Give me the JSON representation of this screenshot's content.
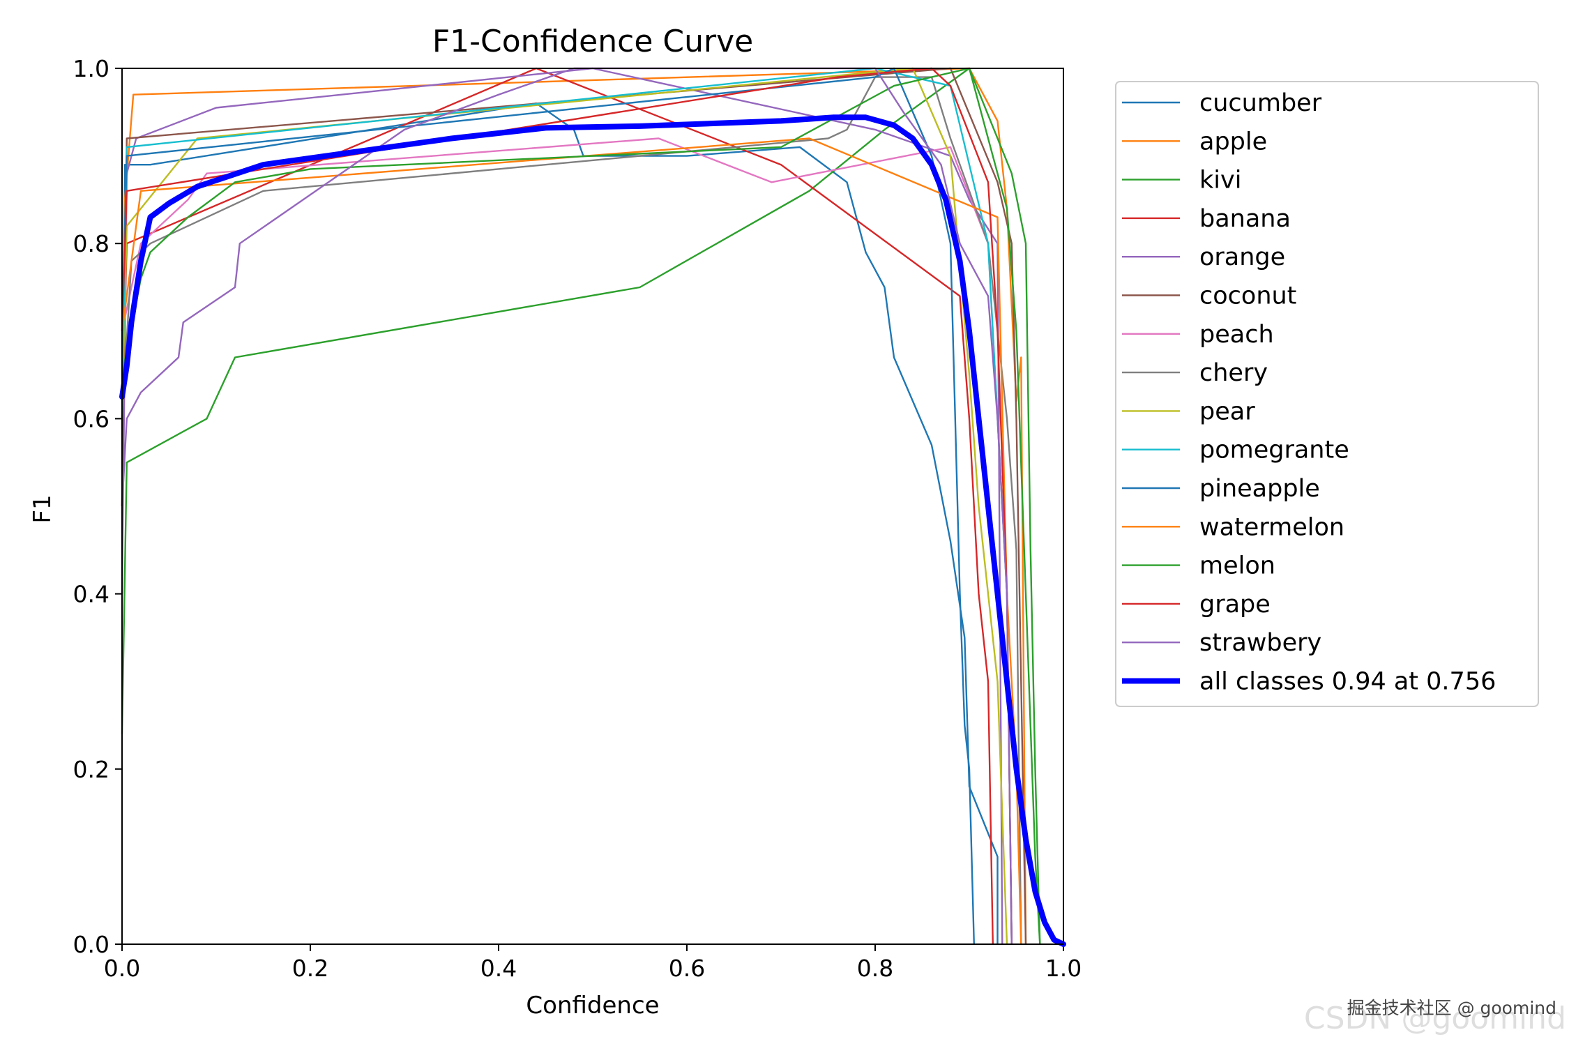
{
  "chart_data": {
    "type": "line",
    "title": "F1-Confidence Curve",
    "xlabel": "Confidence",
    "ylabel": "F1",
    "xlim": [
      0,
      1
    ],
    "ylim": [
      0,
      1
    ],
    "x_ticks": [
      "0.0",
      "0.2",
      "0.4",
      "0.6",
      "0.8",
      "1.0"
    ],
    "y_ticks": [
      "0.0",
      "0.2",
      "0.4",
      "0.6",
      "0.8",
      "1.0"
    ],
    "grid": false,
    "legend_position": "outside upper right",
    "series": [
      {
        "name": "cucumber",
        "color": "#1f77b4",
        "points": [
          [
            0,
            0.5
          ],
          [
            0.003,
            0.89
          ],
          [
            0.03,
            0.89
          ],
          [
            0.44,
            0.96
          ],
          [
            0.48,
            0.93
          ],
          [
            0.49,
            0.9
          ],
          [
            0.6,
            0.9
          ],
          [
            0.72,
            0.91
          ],
          [
            0.77,
            0.87
          ],
          [
            0.79,
            0.79
          ],
          [
            0.81,
            0.75
          ],
          [
            0.82,
            0.67
          ],
          [
            0.86,
            0.57
          ],
          [
            0.88,
            0.46
          ],
          [
            0.895,
            0.35
          ],
          [
            0.9,
            0.18
          ],
          [
            0.93,
            0.1
          ],
          [
            0.93,
            0.0
          ]
        ]
      },
      {
        "name": "apple",
        "color": "#ff7f0e",
        "points": [
          [
            0,
            0.5
          ],
          [
            0.003,
            0.85
          ],
          [
            0.012,
            0.97
          ],
          [
            0.9,
            1.0
          ],
          [
            0.93,
            0.94
          ],
          [
            0.94,
            0.84
          ],
          [
            0.95,
            0.62
          ],
          [
            0.955,
            0.67
          ],
          [
            0.96,
            0.0
          ]
        ]
      },
      {
        "name": "kivi",
        "color": "#2ca02c",
        "points": [
          [
            0,
            0.24
          ],
          [
            0.005,
            0.55
          ],
          [
            0.09,
            0.6
          ],
          [
            0.12,
            0.67
          ],
          [
            0.55,
            0.75
          ],
          [
            0.73,
            0.86
          ],
          [
            0.81,
            0.93
          ],
          [
            0.9,
            1.0
          ],
          [
            0.945,
            0.88
          ],
          [
            0.96,
            0.8
          ],
          [
            0.965,
            0.45
          ],
          [
            0.97,
            0.2
          ],
          [
            0.975,
            0.0
          ]
        ]
      },
      {
        "name": "banana",
        "color": "#d62728",
        "points": [
          [
            0,
            0.6
          ],
          [
            0.005,
            0.8
          ],
          [
            0.44,
            1.0
          ],
          [
            0.7,
            0.89
          ],
          [
            0.89,
            0.74
          ],
          [
            0.9,
            0.6
          ],
          [
            0.91,
            0.4
          ],
          [
            0.92,
            0.3
          ],
          [
            0.925,
            0.0
          ]
        ]
      },
      {
        "name": "orange",
        "color": "#9467bd",
        "points": [
          [
            0,
            0.4
          ],
          [
            0.005,
            0.88
          ],
          [
            0.015,
            0.92
          ],
          [
            0.1,
            0.955
          ],
          [
            0.5,
            1.0
          ],
          [
            0.8,
            0.93
          ],
          [
            0.88,
            0.9
          ],
          [
            0.9,
            0.85
          ],
          [
            0.93,
            0.8
          ],
          [
            0.935,
            0.0
          ]
        ]
      },
      {
        "name": "coconut",
        "color": "#8c564b",
        "points": [
          [
            0,
            0.5
          ],
          [
            0.005,
            0.92
          ],
          [
            0.88,
            1.0
          ],
          [
            0.93,
            0.87
          ],
          [
            0.945,
            0.8
          ],
          [
            0.95,
            0.6
          ],
          [
            0.955,
            0.3
          ],
          [
            0.96,
            0.0
          ]
        ]
      },
      {
        "name": "peach",
        "color": "#e377c2",
        "points": [
          [
            0,
            0.7
          ],
          [
            0.02,
            0.8
          ],
          [
            0.07,
            0.85
          ],
          [
            0.09,
            0.88
          ],
          [
            0.57,
            0.92
          ],
          [
            0.69,
            0.87
          ],
          [
            0.88,
            0.91
          ],
          [
            0.92,
            0.8
          ],
          [
            0.93,
            0.6
          ],
          [
            0.94,
            0.4
          ],
          [
            0.945,
            0.0
          ]
        ]
      },
      {
        "name": "chery",
        "color": "#7f7f7f",
        "points": [
          [
            0,
            0.6
          ],
          [
            0.01,
            0.78
          ],
          [
            0.03,
            0.8
          ],
          [
            0.15,
            0.86
          ],
          [
            0.75,
            0.92
          ],
          [
            0.77,
            0.93
          ],
          [
            0.8,
            0.99
          ],
          [
            0.86,
            0.99
          ],
          [
            0.88,
            0.92
          ],
          [
            0.92,
            0.8
          ],
          [
            0.94,
            0.6
          ],
          [
            0.95,
            0.45
          ],
          [
            0.955,
            0.0
          ]
        ]
      },
      {
        "name": "pear",
        "color": "#bcbd22",
        "points": [
          [
            0,
            0.6
          ],
          [
            0.005,
            0.82
          ],
          [
            0.08,
            0.92
          ],
          [
            0.84,
            1.0
          ],
          [
            0.88,
            0.9
          ],
          [
            0.9,
            0.65
          ],
          [
            0.91,
            0.5
          ],
          [
            0.93,
            0.3
          ],
          [
            0.94,
            0.0
          ]
        ]
      },
      {
        "name": "pomegrante",
        "color": "#17becf",
        "points": [
          [
            0,
            0.6
          ],
          [
            0.005,
            0.91
          ],
          [
            0.8,
            1.0
          ],
          [
            0.88,
            0.98
          ],
          [
            0.92,
            0.8
          ],
          [
            0.94,
            0.4
          ],
          [
            0.945,
            0.0
          ]
        ]
      },
      {
        "name": "pineapple",
        "color": "#1f77b4",
        "points": [
          [
            0,
            0.7
          ],
          [
            0.005,
            0.9
          ],
          [
            0.8,
            0.99
          ],
          [
            0.82,
            1.0
          ],
          [
            0.86,
            0.9
          ],
          [
            0.88,
            0.8
          ],
          [
            0.885,
            0.6
          ],
          [
            0.89,
            0.4
          ],
          [
            0.895,
            0.25
          ],
          [
            0.9,
            0.2
          ],
          [
            0.905,
            0.0
          ]
        ]
      },
      {
        "name": "watermelon",
        "color": "#ff7f0e",
        "points": [
          [
            0,
            0.7
          ],
          [
            0.02,
            0.86
          ],
          [
            0.73,
            0.92
          ],
          [
            0.93,
            0.83
          ],
          [
            0.94,
            0.4
          ],
          [
            0.95,
            0.2
          ],
          [
            0.955,
            0.0
          ]
        ]
      },
      {
        "name": "melon",
        "color": "#2ca02c",
        "points": [
          [
            0,
            0.65
          ],
          [
            0.02,
            0.76
          ],
          [
            0.03,
            0.79
          ],
          [
            0.07,
            0.83
          ],
          [
            0.12,
            0.87
          ],
          [
            0.2,
            0.885
          ],
          [
            0.7,
            0.91
          ],
          [
            0.82,
            0.98
          ],
          [
            0.9,
            1.0
          ],
          [
            0.94,
            0.84
          ],
          [
            0.95,
            0.7
          ],
          [
            0.96,
            0.4
          ],
          [
            0.97,
            0.1
          ],
          [
            0.975,
            0.0
          ]
        ]
      },
      {
        "name": "grape",
        "color": "#d62728",
        "points": [
          [
            0,
            0.7
          ],
          [
            0.005,
            0.86
          ],
          [
            0.76,
            0.99
          ],
          [
            0.86,
            1.0
          ],
          [
            0.88,
            0.98
          ],
          [
            0.92,
            0.87
          ],
          [
            0.93,
            0.7
          ],
          [
            0.94,
            0.4
          ],
          [
            0.945,
            0.0
          ]
        ]
      },
      {
        "name": "strawbery",
        "color": "#9467bd",
        "points": [
          [
            0,
            0.5
          ],
          [
            0.005,
            0.6
          ],
          [
            0.02,
            0.63
          ],
          [
            0.06,
            0.67
          ],
          [
            0.065,
            0.71
          ],
          [
            0.12,
            0.75
          ],
          [
            0.125,
            0.8
          ],
          [
            0.3,
            0.93
          ],
          [
            0.4,
            0.97
          ],
          [
            0.48,
            1.0
          ],
          [
            0.8,
            1.0
          ],
          [
            0.83,
            0.95
          ],
          [
            0.87,
            0.89
          ],
          [
            0.89,
            0.8
          ],
          [
            0.92,
            0.74
          ],
          [
            0.93,
            0.6
          ],
          [
            0.94,
            0.4
          ],
          [
            0.945,
            0.0
          ]
        ]
      }
    ],
    "all_classes": {
      "name": "all classes 0.94 at 0.756",
      "color": "#0000ff",
      "points": [
        [
          0,
          0.625
        ],
        [
          0.005,
          0.66
        ],
        [
          0.01,
          0.71
        ],
        [
          0.02,
          0.78
        ],
        [
          0.03,
          0.83
        ],
        [
          0.05,
          0.846
        ],
        [
          0.08,
          0.865
        ],
        [
          0.15,
          0.89
        ],
        [
          0.25,
          0.905
        ],
        [
          0.35,
          0.92
        ],
        [
          0.45,
          0.932
        ],
        [
          0.55,
          0.934
        ],
        [
          0.65,
          0.938
        ],
        [
          0.7,
          0.94
        ],
        [
          0.756,
          0.944
        ],
        [
          0.79,
          0.944
        ],
        [
          0.82,
          0.935
        ],
        [
          0.84,
          0.92
        ],
        [
          0.86,
          0.89
        ],
        [
          0.875,
          0.85
        ],
        [
          0.89,
          0.78
        ],
        [
          0.9,
          0.7
        ],
        [
          0.91,
          0.6
        ],
        [
          0.92,
          0.5
        ],
        [
          0.93,
          0.4
        ],
        [
          0.94,
          0.3
        ],
        [
          0.95,
          0.2
        ],
        [
          0.96,
          0.12
        ],
        [
          0.97,
          0.06
        ],
        [
          0.98,
          0.025
        ],
        [
          0.99,
          0.005
        ],
        [
          1.0,
          0.0
        ]
      ]
    }
  },
  "watermark": {
    "overlay": "CSDN @goomind",
    "caption": "掘金技术社区 @ goomind"
  }
}
